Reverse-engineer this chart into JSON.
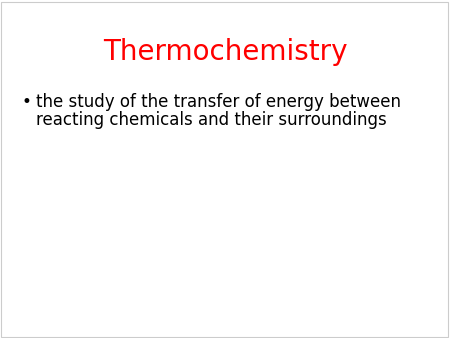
{
  "title": "Thermochemistry",
  "title_color": "#FF0000",
  "title_fontsize": 20,
  "bullet_text_line1": "the study of the transfer of energy between",
  "bullet_text_line2": "reacting chemicals and their surroundings",
  "bullet_color": "#000000",
  "bullet_fontsize": 12,
  "background_color": "#FFFFFF",
  "bullet_marker": "•",
  "border_color": "#CCCCCC"
}
